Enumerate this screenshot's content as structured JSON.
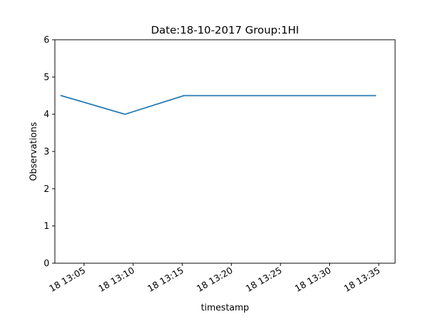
{
  "chart_data": {
    "type": "line",
    "title": "Date:18-10-2017  Group:1HI",
    "xlabel": "timestamp",
    "ylabel": "Observations",
    "ylim": [
      0,
      6
    ],
    "xlim": [
      "18 13:02:02",
      "18 13:36:40"
    ],
    "yticks": [
      "0",
      "1",
      "2",
      "3",
      "4",
      "5",
      "6"
    ],
    "xticks": [
      "18 13:05",
      "18 13:10",
      "18 13:15",
      "18 13:20",
      "18 13:25",
      "18 13:30",
      "18 13:35"
    ],
    "grid": false,
    "series": [
      {
        "color": "#1f77b4",
        "x": [
          "18 13:02:40",
          "18 13:09:10",
          "18 13:15:10",
          "18 13:20:00",
          "18 13:25:00",
          "18 13:30:00",
          "18 13:34:40"
        ],
        "y": [
          4.5,
          4.0,
          4.5,
          4.5,
          4.5,
          4.5,
          4.5
        ]
      }
    ]
  }
}
